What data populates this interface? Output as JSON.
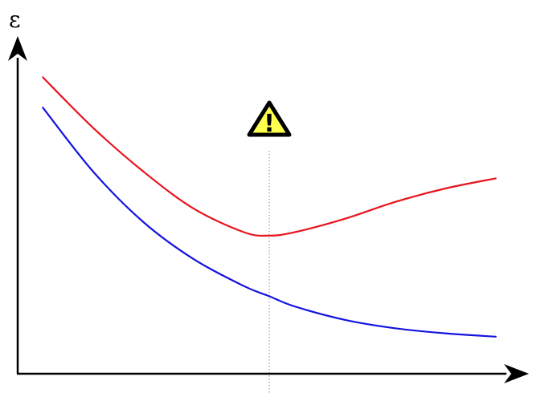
{
  "chart_data": {
    "type": "line",
    "title": "",
    "xlabel": "",
    "ylabel": "ε",
    "xlim": [
      0,
      1
    ],
    "ylim": [
      0,
      1
    ],
    "grid": false,
    "legend": "none",
    "series": [
      {
        "color": "#e8141e",
        "x": [
          0.05,
          0.15,
          0.25,
          0.35,
          0.45,
          0.5,
          0.55,
          0.65,
          0.75,
          0.85,
          0.95
        ],
        "y": [
          0.88,
          0.73,
          0.6,
          0.49,
          0.42,
          0.41,
          0.42,
          0.46,
          0.51,
          0.55,
          0.58
        ]
      },
      {
        "color": "#1414e0",
        "x": [
          0.05,
          0.15,
          0.25,
          0.35,
          0.45,
          0.5,
          0.55,
          0.65,
          0.75,
          0.85,
          0.95
        ],
        "y": [
          0.79,
          0.6,
          0.45,
          0.34,
          0.26,
          0.23,
          0.2,
          0.16,
          0.135,
          0.12,
          0.11
        ]
      }
    ],
    "marker": {
      "x": 0.5,
      "icon": "warning-icon",
      "icon_text": "!",
      "icon_fill": "#ffff4d",
      "line_color": "#8a8a8a"
    }
  }
}
